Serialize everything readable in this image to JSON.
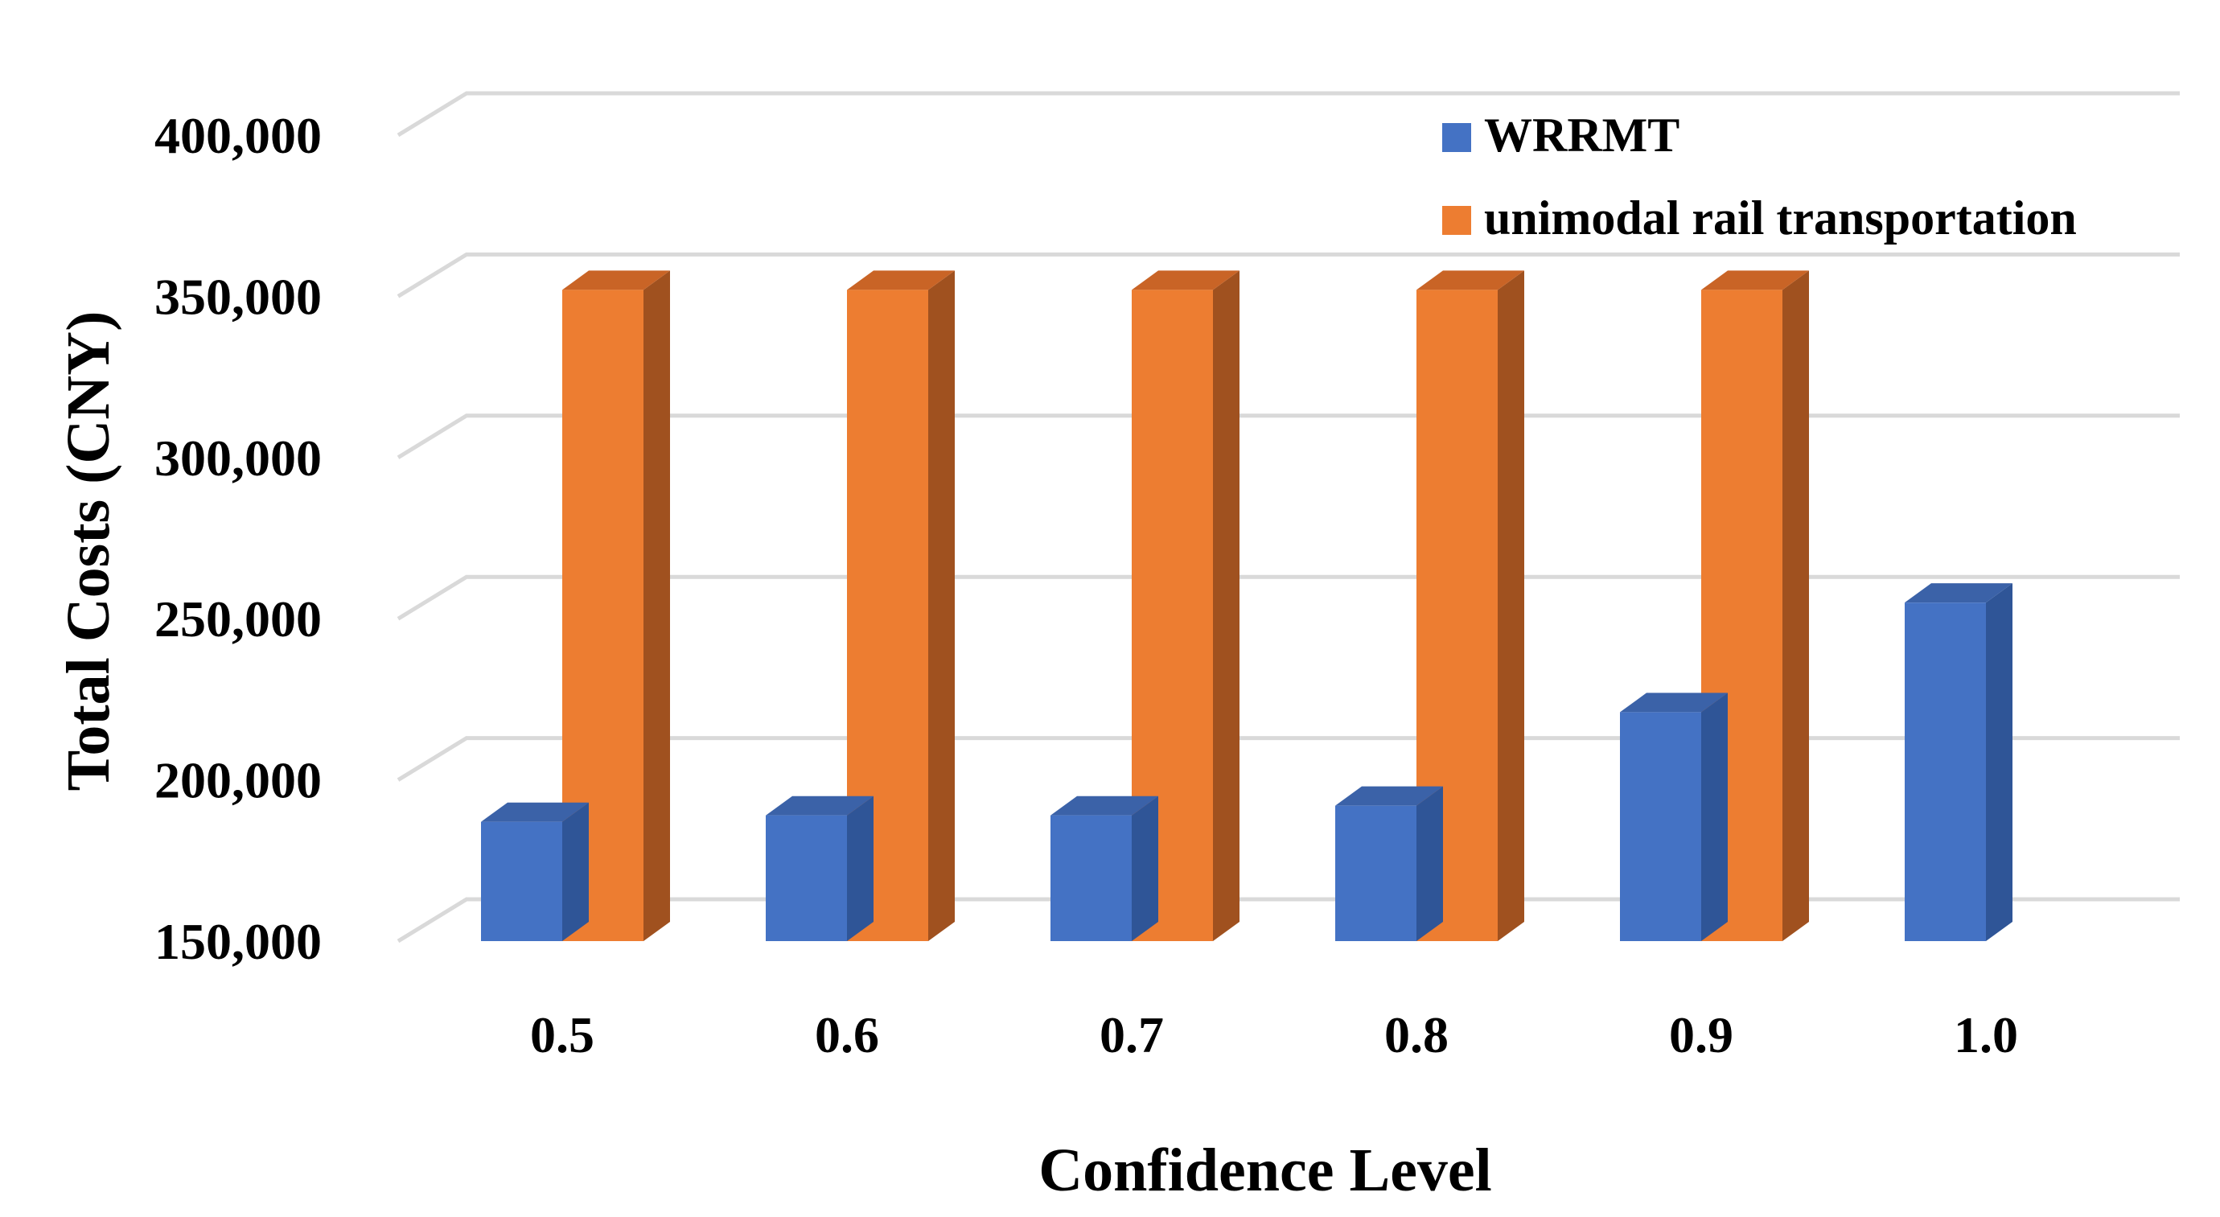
{
  "chart_data": {
    "type": "bar",
    "style": "3d-clustered-column",
    "categories": [
      "0.5",
      "0.6",
      "0.7",
      "0.8",
      "0.9",
      "1.0"
    ],
    "series": [
      {
        "name": "WRRMT",
        "color": "#4472C4",
        "side_color": "#2F5597",
        "top_color": "#3B62A8",
        "values": [
          187000,
          189000,
          189000,
          192000,
          221000,
          255000
        ]
      },
      {
        "name": "unimodal rail transportation",
        "color": "#ED7D31",
        "side_color": "#A0511F",
        "top_color": "#C96426",
        "values": [
          352000,
          352000,
          352000,
          352000,
          352000,
          null
        ]
      }
    ],
    "title": "",
    "xlabel": "Confidence Level",
    "ylabel": "Total Costs (CNY)",
    "ylim": [
      150000,
      400000
    ],
    "yticks": [
      150000,
      200000,
      250000,
      300000,
      350000,
      400000
    ],
    "ytick_labels": [
      "150,000",
      "200,000",
      "250,000",
      "300,000",
      "350,000",
      "400,000"
    ],
    "grid": true,
    "legend_position": "top-right"
  }
}
